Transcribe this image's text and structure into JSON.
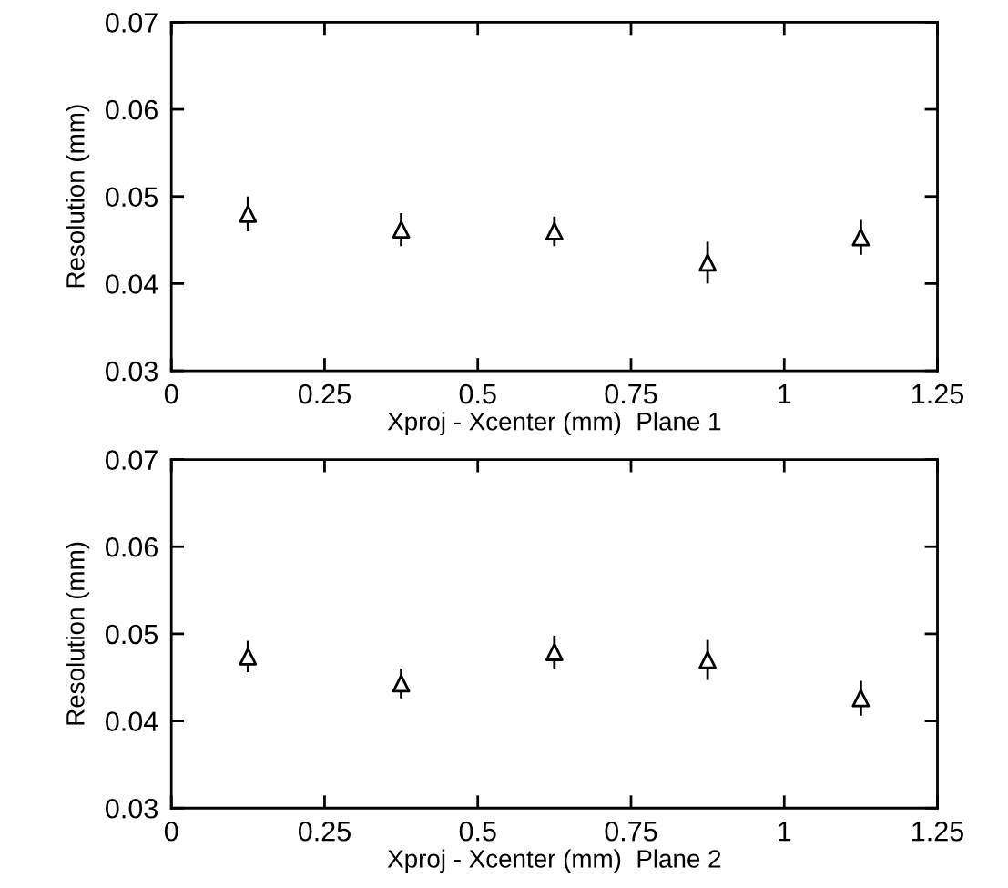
{
  "chart_data": [
    {
      "type": "scatter",
      "xlabel": "Xproj - Xcenter (mm)  Plane 1",
      "ylabel": "Resolution (mm)",
      "x": [
        0.125,
        0.375,
        0.625,
        0.875,
        1.125
      ],
      "values": [
        0.048,
        0.0462,
        0.046,
        0.0424,
        0.0453
      ],
      "errors": [
        0.002,
        0.0019,
        0.0017,
        0.0024,
        0.002
      ],
      "color": "#000000",
      "marker": "triangle",
      "xlim": [
        0,
        1.25
      ],
      "xticks": [
        0,
        0.25,
        0.5,
        0.75,
        1,
        1.25
      ],
      "ylim": [
        0.03,
        0.07
      ],
      "yticks": [
        0.03,
        0.04,
        0.05,
        0.06,
        0.07
      ],
      "grid": false,
      "legend": false
    },
    {
      "type": "scatter",
      "xlabel": "Xproj - Xcenter (mm)  Plane 2",
      "ylabel": "Resolution (mm)",
      "x": [
        0.125,
        0.375,
        0.625,
        0.875,
        1.125
      ],
      "values": [
        0.0474,
        0.0443,
        0.0479,
        0.047,
        0.0426
      ],
      "errors": [
        0.0018,
        0.0017,
        0.0019,
        0.0023,
        0.002
      ],
      "color": "#000000",
      "marker": "triangle",
      "xlim": [
        0,
        1.25
      ],
      "xticks": [
        0,
        0.25,
        0.5,
        0.75,
        1,
        1.25
      ],
      "ylim": [
        0.03,
        0.07
      ],
      "yticks": [
        0.03,
        0.04,
        0.05,
        0.06,
        0.07
      ],
      "grid": false,
      "legend": false
    }
  ]
}
